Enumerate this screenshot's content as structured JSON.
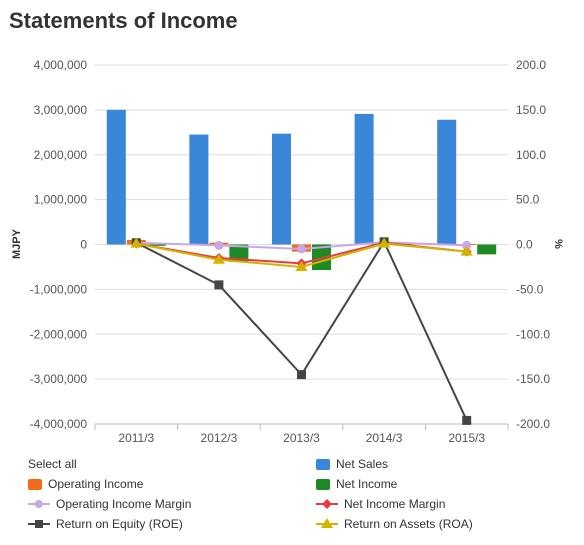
{
  "page": {
    "title": "Statements of Income"
  },
  "legend": {
    "select_all": "Select all",
    "items": [
      {
        "key": "net_sales",
        "label": "Net Sales",
        "color": "#3a86d8",
        "marker": "square-swatch"
      },
      {
        "key": "operating_income",
        "label": "Operating Income",
        "color": "#ef6c1a",
        "marker": "square-swatch"
      },
      {
        "key": "net_income",
        "label": "Net Income",
        "color": "#1e8a26",
        "marker": "square-swatch"
      },
      {
        "key": "operating_income_margin",
        "label": "Operating Income Margin",
        "color": "#c9a6e6",
        "marker": "circle"
      },
      {
        "key": "net_income_margin",
        "label": "Net Income Margin",
        "color": "#e53e3e",
        "marker": "diamond"
      },
      {
        "key": "roe",
        "label": "Return on Equity (ROE)",
        "color": "#454545",
        "marker": "square"
      },
      {
        "key": "roa",
        "label": "Return on Assets (ROA)",
        "color": "#d4b300",
        "marker": "triangle"
      }
    ]
  },
  "chart_data": {
    "type": "bar",
    "title": "Statements of Income",
    "categories": [
      "2011/3",
      "2012/3",
      "2013/3",
      "2014/3",
      "2015/3"
    ],
    "ylabel_left": "MJPY",
    "ylabel_right": "%",
    "ylim_left": [
      -4000000,
      4000000
    ],
    "ylim_right": [
      -200,
      200
    ],
    "yticks_left": [
      "4,000,000",
      "3,000,000",
      "2,000,000",
      "1,000,000",
      "0",
      "-1,000,000",
      "-2,000,000",
      "-3,000,000",
      "-4,000,000"
    ],
    "yticks_right": [
      "200.0",
      "150.0",
      "100.0",
      "50.0",
      "0.0",
      "-50.0",
      "-100.0",
      "-150.0",
      "-200.0"
    ],
    "grid": true,
    "bar_series": [
      {
        "name": "Net Sales",
        "color": "#3a86d8",
        "values": [
          3000000,
          2450000,
          2470000,
          2910000,
          2780000
        ]
      },
      {
        "name": "Operating Income",
        "color": "#ef6c1a",
        "values": [
          100000,
          40000,
          -160000,
          50000,
          10000
        ]
      },
      {
        "name": "Net Income",
        "color": "#1e8a26",
        "values": [
          -30000,
          -390000,
          -570000,
          40000,
          -220000
        ]
      }
    ],
    "line_series": [
      {
        "name": "Operating Income Margin",
        "color": "#c9a6e6",
        "marker": "circle",
        "values": [
          2.0,
          -1.0,
          -5.0,
          2.5,
          -1.0
        ]
      },
      {
        "name": "Net Income Margin",
        "color": "#e53e3e",
        "marker": "diamond",
        "values": [
          1.0,
          -15.0,
          -21.0,
          2.0,
          -8.0
        ]
      },
      {
        "name": "Return on Equity (ROE)",
        "color": "#454545",
        "marker": "square",
        "values": [
          2.0,
          -45.0,
          -145.0,
          3.0,
          -196.0
        ]
      },
      {
        "name": "Return on Assets (ROA)",
        "color": "#d4b300",
        "marker": "triangle",
        "values": [
          1.0,
          -17.0,
          -25.0,
          1.0,
          -8.0
        ]
      }
    ]
  }
}
